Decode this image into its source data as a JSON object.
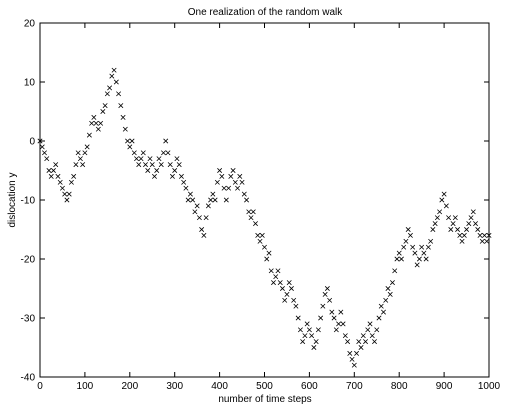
{
  "chart_data": {
    "type": "scatter",
    "title": "One realization of the random walk",
    "xlabel": "number of time steps",
    "ylabel": "dislocation y",
    "xlim": [
      0,
      1000
    ],
    "ylim": [
      -40,
      20
    ],
    "x_ticks": [
      0,
      100,
      200,
      300,
      400,
      500,
      600,
      700,
      800,
      900,
      1000
    ],
    "y_ticks": [
      -40,
      -30,
      -20,
      -10,
      0,
      10,
      20
    ],
    "grid": false,
    "marker": "x",
    "series_color": "#000000",
    "series": [
      {
        "points": [
          [
            0,
            0
          ],
          [
            5,
            -1
          ],
          [
            10,
            -2
          ],
          [
            15,
            -3
          ],
          [
            20,
            -5
          ],
          [
            25,
            -6
          ],
          [
            30,
            -5
          ],
          [
            35,
            -4
          ],
          [
            40,
            -6
          ],
          [
            45,
            -7
          ],
          [
            50,
            -8
          ],
          [
            55,
            -9
          ],
          [
            60,
            -10
          ],
          [
            65,
            -9
          ],
          [
            70,
            -7
          ],
          [
            75,
            -6
          ],
          [
            80,
            -4
          ],
          [
            85,
            -2
          ],
          [
            90,
            -3
          ],
          [
            95,
            -4
          ],
          [
            100,
            -2
          ],
          [
            105,
            -1
          ],
          [
            110,
            1
          ],
          [
            115,
            3
          ],
          [
            120,
            4
          ],
          [
            125,
            3
          ],
          [
            130,
            2
          ],
          [
            135,
            3
          ],
          [
            140,
            5
          ],
          [
            145,
            6
          ],
          [
            150,
            8
          ],
          [
            155,
            9
          ],
          [
            160,
            11
          ],
          [
            165,
            12
          ],
          [
            170,
            10
          ],
          [
            175,
            8
          ],
          [
            180,
            6
          ],
          [
            185,
            4
          ],
          [
            190,
            2
          ],
          [
            195,
            0
          ],
          [
            200,
            -1
          ],
          [
            205,
            0
          ],
          [
            210,
            -2
          ],
          [
            215,
            -3
          ],
          [
            220,
            -4
          ],
          [
            225,
            -3
          ],
          [
            230,
            -2
          ],
          [
            235,
            -4
          ],
          [
            240,
            -5
          ],
          [
            245,
            -3
          ],
          [
            250,
            -4
          ],
          [
            255,
            -6
          ],
          [
            260,
            -5
          ],
          [
            265,
            -3
          ],
          [
            270,
            -4
          ],
          [
            275,
            -2
          ],
          [
            280,
            0
          ],
          [
            285,
            -2
          ],
          [
            290,
            -4
          ],
          [
            295,
            -6
          ],
          [
            300,
            -5
          ],
          [
            305,
            -3
          ],
          [
            310,
            -4
          ],
          [
            315,
            -6
          ],
          [
            320,
            -7
          ],
          [
            325,
            -8
          ],
          [
            330,
            -10
          ],
          [
            335,
            -9
          ],
          [
            340,
            -10
          ],
          [
            345,
            -12
          ],
          [
            350,
            -11
          ],
          [
            355,
            -13
          ],
          [
            360,
            -15
          ],
          [
            365,
            -16
          ],
          [
            370,
            -13
          ],
          [
            375,
            -11
          ],
          [
            380,
            -10
          ],
          [
            385,
            -9
          ],
          [
            390,
            -10
          ],
          [
            395,
            -7
          ],
          [
            400,
            -5
          ],
          [
            405,
            -6
          ],
          [
            410,
            -8
          ],
          [
            415,
            -10
          ],
          [
            420,
            -8
          ],
          [
            425,
            -6
          ],
          [
            430,
            -5
          ],
          [
            435,
            -7
          ],
          [
            440,
            -8
          ],
          [
            445,
            -6
          ],
          [
            450,
            -7
          ],
          [
            455,
            -9
          ],
          [
            460,
            -10
          ],
          [
            465,
            -12
          ],
          [
            470,
            -13
          ],
          [
            475,
            -12
          ],
          [
            480,
            -14
          ],
          [
            485,
            -16
          ],
          [
            490,
            -17
          ],
          [
            495,
            -16
          ],
          [
            500,
            -18
          ],
          [
            505,
            -20
          ],
          [
            510,
            -19
          ],
          [
            515,
            -22
          ],
          [
            520,
            -24
          ],
          [
            525,
            -23
          ],
          [
            530,
            -22
          ],
          [
            535,
            -24
          ],
          [
            540,
            -25
          ],
          [
            545,
            -27
          ],
          [
            550,
            -26
          ],
          [
            555,
            -24
          ],
          [
            560,
            -25
          ],
          [
            565,
            -27
          ],
          [
            570,
            -28
          ],
          [
            575,
            -30
          ],
          [
            580,
            -32
          ],
          [
            585,
            -34
          ],
          [
            590,
            -33
          ],
          [
            595,
            -31
          ],
          [
            600,
            -32
          ],
          [
            605,
            -33
          ],
          [
            610,
            -35
          ],
          [
            615,
            -34
          ],
          [
            620,
            -32
          ],
          [
            625,
            -30
          ],
          [
            630,
            -28
          ],
          [
            635,
            -26
          ],
          [
            640,
            -25
          ],
          [
            645,
            -27
          ],
          [
            650,
            -29
          ],
          [
            655,
            -30
          ],
          [
            660,
            -32
          ],
          [
            665,
            -31
          ],
          [
            670,
            -29
          ],
          [
            675,
            -31
          ],
          [
            680,
            -33
          ],
          [
            685,
            -34
          ],
          [
            690,
            -36
          ],
          [
            695,
            -37
          ],
          [
            700,
            -38
          ],
          [
            705,
            -36
          ],
          [
            710,
            -34
          ],
          [
            715,
            -35
          ],
          [
            720,
            -33
          ],
          [
            725,
            -34
          ],
          [
            730,
            -32
          ],
          [
            735,
            -31
          ],
          [
            740,
            -33
          ],
          [
            745,
            -34
          ],
          [
            750,
            -32
          ],
          [
            755,
            -30
          ],
          [
            760,
            -28
          ],
          [
            765,
            -29
          ],
          [
            770,
            -27
          ],
          [
            775,
            -25
          ],
          [
            780,
            -26
          ],
          [
            785,
            -24
          ],
          [
            790,
            -22
          ],
          [
            795,
            -20
          ],
          [
            800,
            -19
          ],
          [
            805,
            -20
          ],
          [
            810,
            -18
          ],
          [
            815,
            -17
          ],
          [
            820,
            -15
          ],
          [
            825,
            -16
          ],
          [
            830,
            -18
          ],
          [
            835,
            -19
          ],
          [
            840,
            -21
          ],
          [
            845,
            -20
          ],
          [
            850,
            -18
          ],
          [
            855,
            -19
          ],
          [
            860,
            -20
          ],
          [
            865,
            -18
          ],
          [
            870,
            -17
          ],
          [
            875,
            -15
          ],
          [
            880,
            -14
          ],
          [
            885,
            -13
          ],
          [
            890,
            -12
          ],
          [
            895,
            -10
          ],
          [
            900,
            -9
          ],
          [
            905,
            -11
          ],
          [
            910,
            -13
          ],
          [
            915,
            -15
          ],
          [
            920,
            -14
          ],
          [
            925,
            -13
          ],
          [
            930,
            -15
          ],
          [
            935,
            -16
          ],
          [
            940,
            -17
          ],
          [
            945,
            -16
          ],
          [
            950,
            -15
          ],
          [
            955,
            -14
          ],
          [
            960,
            -13
          ],
          [
            965,
            -12
          ],
          [
            970,
            -14
          ],
          [
            975,
            -15
          ],
          [
            980,
            -16
          ],
          [
            985,
            -17
          ],
          [
            990,
            -16
          ],
          [
            995,
            -17
          ],
          [
            1000,
            -16
          ]
        ]
      }
    ]
  }
}
